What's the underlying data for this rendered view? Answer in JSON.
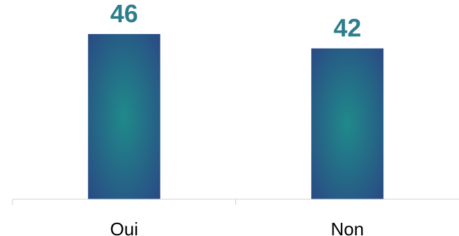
{
  "chart_data": {
    "type": "bar",
    "categories": [
      "Oui",
      "Non"
    ],
    "values": [
      46,
      42
    ],
    "title": "",
    "xlabel": "",
    "ylabel": "",
    "ylim": [
      0,
      52
    ],
    "grid": false,
    "legend": "none",
    "data_labels": true,
    "colors": {
      "bar_center": "#1f8a8a",
      "bar_edge": "#2a4a84",
      "value_label": "#2e7d8c",
      "axis": "#d0d0d0",
      "category_label": "#000000"
    }
  }
}
